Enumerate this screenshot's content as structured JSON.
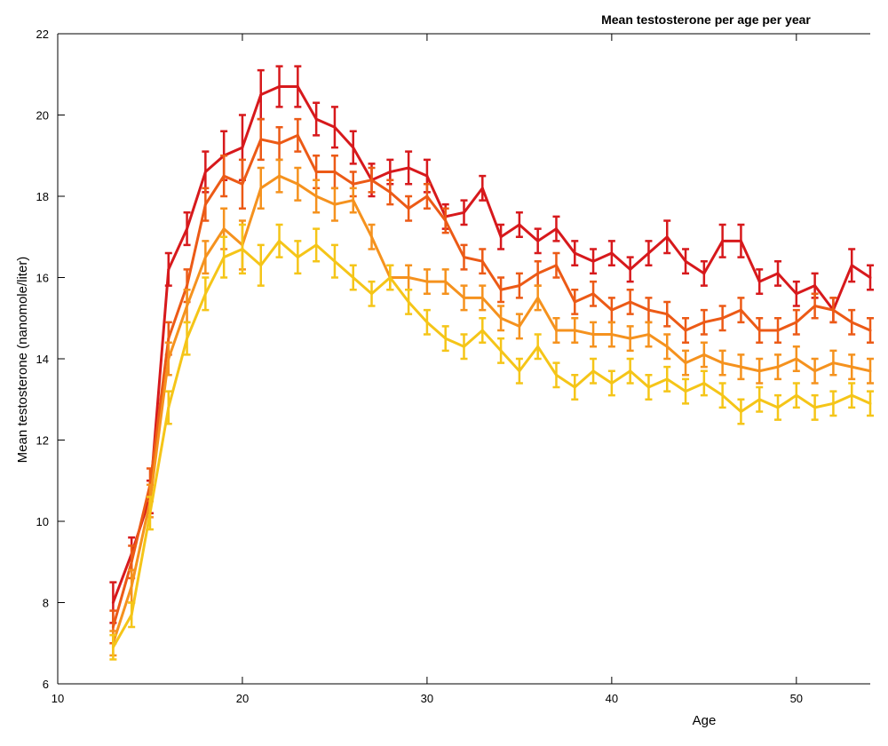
{
  "chart_data": {
    "type": "line",
    "title": "Mean testosterone per age per year",
    "xlabel": "Age",
    "ylabel": "Mean testosterone (nanomole/liter)",
    "xlim": [
      10,
      54
    ],
    "ylim": [
      6,
      22
    ],
    "xticks": [
      10,
      20,
      30,
      40,
      50
    ],
    "yticks": [
      6,
      8,
      10,
      12,
      14,
      16,
      18,
      20,
      22
    ],
    "grid": false,
    "x": [
      13,
      14,
      15,
      16,
      17,
      18,
      19,
      20,
      21,
      22,
      23,
      24,
      25,
      26,
      27,
      28,
      29,
      30,
      31,
      32,
      33,
      34,
      35,
      36,
      37,
      38,
      39,
      40,
      41,
      42,
      43,
      44,
      45,
      46,
      47,
      48,
      49,
      50,
      51,
      52,
      53,
      54
    ],
    "series": [
      {
        "color": "#d7191c",
        "values": [
          8.0,
          9.2,
          10.6,
          16.2,
          17.2,
          18.6,
          19.0,
          19.2,
          20.5,
          20.7,
          20.7,
          19.9,
          19.7,
          19.2,
          18.4,
          18.6,
          18.7,
          18.5,
          17.5,
          17.6,
          18.2,
          17.0,
          17.3,
          16.9,
          17.2,
          16.6,
          16.4,
          16.6,
          16.2,
          16.6,
          17.0,
          16.4,
          16.1,
          16.9,
          16.9,
          15.9,
          16.1,
          15.6,
          15.8,
          15.2,
          16.3,
          16.0
        ],
        "errors": [
          0.5,
          0.4,
          0.4,
          0.4,
          0.4,
          0.5,
          0.6,
          0.8,
          0.6,
          0.5,
          0.5,
          0.4,
          0.5,
          0.4,
          0.4,
          0.3,
          0.4,
          0.4,
          0.3,
          0.3,
          0.3,
          0.3,
          0.3,
          0.3,
          0.3,
          0.3,
          0.3,
          0.3,
          0.3,
          0.3,
          0.4,
          0.3,
          0.3,
          0.4,
          0.4,
          0.3,
          0.3,
          0.3,
          0.3,
          0.3,
          0.4,
          0.3
        ]
      },
      {
        "color": "#ec5a16",
        "values": [
          7.4,
          9.0,
          10.9,
          14.5,
          15.8,
          17.8,
          18.5,
          18.3,
          19.4,
          19.3,
          19.5,
          18.6,
          18.6,
          18.3,
          18.4,
          18.1,
          17.7,
          18.0,
          17.4,
          16.5,
          16.4,
          15.7,
          15.8,
          16.1,
          16.3,
          15.4,
          15.6,
          15.2,
          15.4,
          15.2,
          15.1,
          14.7,
          14.9,
          15.0,
          15.2,
          14.7,
          14.7,
          14.9,
          15.3,
          15.2,
          14.9,
          14.7
        ],
        "errors": [
          0.4,
          0.4,
          0.4,
          0.4,
          0.4,
          0.4,
          0.5,
          0.6,
          0.5,
          0.4,
          0.4,
          0.4,
          0.4,
          0.3,
          0.3,
          0.3,
          0.3,
          0.3,
          0.3,
          0.3,
          0.3,
          0.3,
          0.3,
          0.3,
          0.3,
          0.3,
          0.3,
          0.3,
          0.3,
          0.3,
          0.3,
          0.3,
          0.3,
          0.3,
          0.3,
          0.3,
          0.3,
          0.3,
          0.3,
          0.3,
          0.3,
          0.3
        ]
      },
      {
        "color": "#f5921e",
        "values": [
          7.0,
          8.4,
          10.5,
          14.0,
          15.3,
          16.5,
          17.2,
          16.8,
          18.2,
          18.5,
          18.3,
          18.0,
          17.8,
          17.9,
          17.0,
          16.0,
          16.0,
          15.9,
          15.9,
          15.5,
          15.5,
          15.0,
          14.8,
          15.5,
          14.7,
          14.7,
          14.6,
          14.6,
          14.5,
          14.6,
          14.3,
          13.9,
          14.1,
          13.9,
          13.8,
          13.7,
          13.8,
          14.0,
          13.7,
          13.9,
          13.8,
          13.7
        ],
        "errors": [
          0.3,
          0.4,
          0.4,
          0.4,
          0.4,
          0.4,
          0.5,
          0.6,
          0.5,
          0.4,
          0.4,
          0.4,
          0.4,
          0.3,
          0.3,
          0.3,
          0.3,
          0.3,
          0.3,
          0.3,
          0.3,
          0.3,
          0.3,
          0.3,
          0.3,
          0.3,
          0.3,
          0.3,
          0.3,
          0.3,
          0.3,
          0.3,
          0.3,
          0.3,
          0.3,
          0.3,
          0.3,
          0.3,
          0.3,
          0.3,
          0.3,
          0.3
        ]
      },
      {
        "color": "#f5c518",
        "values": [
          6.9,
          7.7,
          10.2,
          12.8,
          14.5,
          15.6,
          16.5,
          16.7,
          16.3,
          16.9,
          16.5,
          16.8,
          16.4,
          16.0,
          15.6,
          16.0,
          15.4,
          14.9,
          14.5,
          14.3,
          14.7,
          14.2,
          13.7,
          14.3,
          13.6,
          13.3,
          13.7,
          13.4,
          13.7,
          13.3,
          13.5,
          13.2,
          13.4,
          13.1,
          12.7,
          13.0,
          12.8,
          13.1,
          12.8,
          12.9,
          13.1,
          12.9
        ],
        "errors": [
          0.3,
          0.3,
          0.4,
          0.4,
          0.4,
          0.4,
          0.5,
          0.6,
          0.5,
          0.4,
          0.4,
          0.4,
          0.4,
          0.3,
          0.3,
          0.3,
          0.3,
          0.3,
          0.3,
          0.3,
          0.3,
          0.3,
          0.3,
          0.3,
          0.3,
          0.3,
          0.3,
          0.3,
          0.3,
          0.3,
          0.3,
          0.3,
          0.3,
          0.3,
          0.3,
          0.3,
          0.3,
          0.3,
          0.3,
          0.3,
          0.3,
          0.3
        ]
      }
    ]
  }
}
